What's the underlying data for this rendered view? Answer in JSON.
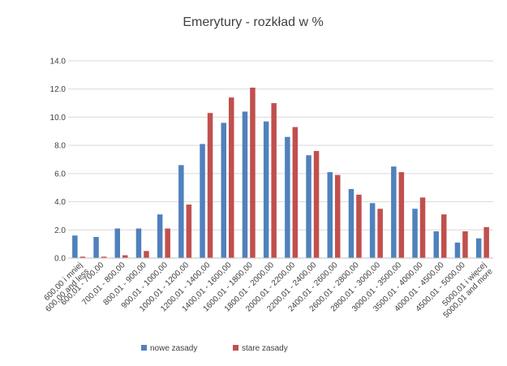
{
  "chart_data": {
    "type": "bar",
    "title": "Emerytury - rozkład w %",
    "xlabel": "",
    "ylabel": "",
    "ylim": [
      0,
      14
    ],
    "yticks": [
      "0.0",
      "2.0",
      "4.0",
      "6.0",
      "8.0",
      "10.0",
      "12.0",
      "14.0"
    ],
    "grid": true,
    "legend_position": "bottom",
    "categories": [
      "600,00 i mniej 600,00 and less",
      "600,01 - 700,00",
      "700,01 - 800,00",
      "800,01 - 900,00",
      "900,01 - 1000,00",
      "1000,01 - 1200,00",
      "1200,01 - 1400,00",
      "1400,01 - 1600,00",
      "1600,01 - 1800,00",
      "1800,01 - 2000,00",
      "2000,01 - 2200,00",
      "2200,01 - 2400,00",
      "2400,01 - 2600,00",
      "2600,01 - 2800,00",
      "2800,01 - 3000,00",
      "3000,01 - 3500,00",
      "3500,01 - 4000,00",
      "4000,01 - 4500,00",
      "4500,01 - 5000,00",
      "5000,01 i więcej 5000,01 and more"
    ],
    "category_lines": [
      [
        "600,00 i mniej",
        "600,00 and less"
      ],
      [
        "600,01 - 700,00"
      ],
      [
        "700,01 - 800,00"
      ],
      [
        "800,01 - 900,00"
      ],
      [
        "900,01 - 1000,00"
      ],
      [
        "1000,01 - 1200,00"
      ],
      [
        "1200,01 - 1400,00"
      ],
      [
        "1400,01 - 1600,00"
      ],
      [
        "1600,01 - 1800,00"
      ],
      [
        "1800,01 - 2000,00"
      ],
      [
        "2000,01 - 2200,00"
      ],
      [
        "2200,01 - 2400,00"
      ],
      [
        "2400,01 - 2600,00"
      ],
      [
        "2600,01 - 2800,00"
      ],
      [
        "2800,01 - 3000,00"
      ],
      [
        "3000,01 - 3500,00"
      ],
      [
        "3500,01 - 4000,00"
      ],
      [
        "4000,01 - 4500,00"
      ],
      [
        "4500,01 - 5000,00"
      ],
      [
        "5000,01 i więcej",
        "5000,01 and more"
      ]
    ],
    "series": [
      {
        "name": "nowe zasady",
        "color": "#4f81bd",
        "values": [
          1.6,
          1.5,
          2.1,
          2.1,
          3.1,
          6.6,
          8.1,
          9.6,
          10.4,
          9.7,
          8.6,
          7.3,
          6.1,
          4.9,
          3.9,
          6.5,
          3.5,
          1.9,
          1.1,
          1.4
        ]
      },
      {
        "name": "stare zasady",
        "color": "#c0504d",
        "values": [
          0.1,
          0.1,
          0.2,
          0.5,
          2.1,
          3.8,
          10.3,
          11.4,
          12.1,
          11.0,
          9.3,
          7.6,
          5.9,
          4.5,
          3.5,
          6.1,
          4.3,
          3.1,
          1.9,
          2.2
        ]
      }
    ]
  }
}
